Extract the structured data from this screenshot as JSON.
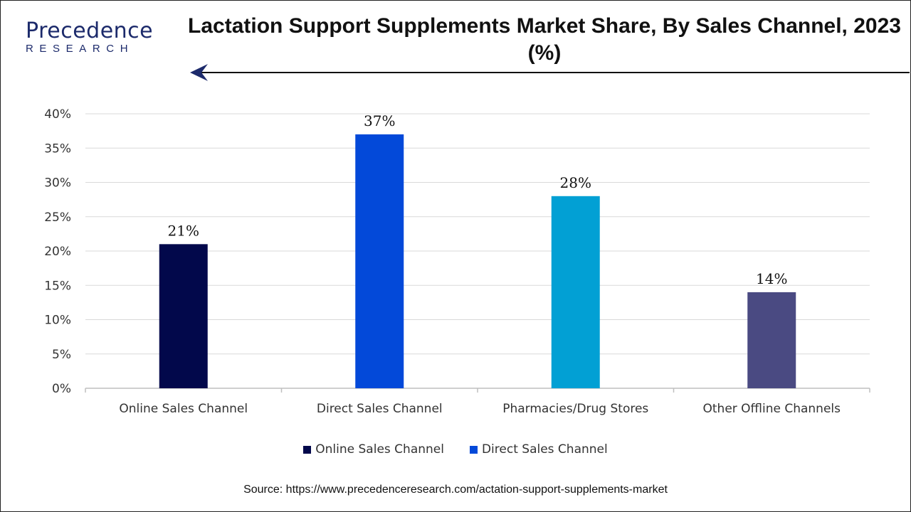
{
  "logo": {
    "word": "Precedence",
    "sub": "RESEARCH"
  },
  "title": "Lactation Support Supplements Market  Share, By Sales Channel, 2023 (%)",
  "source": "Source: https://www.precedenceresearch.com/actation-support-supplements-market",
  "legend": [
    {
      "label": "Online Sales Channel",
      "color": "#02084b"
    },
    {
      "label": "Direct Sales Channel",
      "color": "#0349d9"
    }
  ],
  "colors": {
    "grid": "#d9d9d9",
    "axis": "#bfbfbf",
    "logo": "#1c2a6b"
  },
  "chart_data": {
    "type": "bar",
    "categories": [
      "Online Sales Channel",
      "Direct Sales Channel",
      "Pharmacies/Drug Stores",
      "Other Offline Channels"
    ],
    "values": [
      21,
      37,
      28,
      14
    ],
    "data_labels": [
      "21%",
      "37%",
      "28%",
      "14%"
    ],
    "bar_colors": [
      "#02084b",
      "#0349d9",
      "#02a0d4",
      "#4a4a82"
    ],
    "y_ticks": [
      "0%",
      "5%",
      "10%",
      "15%",
      "20%",
      "25%",
      "30%",
      "35%",
      "40%"
    ],
    "ylim": [
      0,
      40
    ],
    "grid": true,
    "legend_position": "bottom"
  }
}
